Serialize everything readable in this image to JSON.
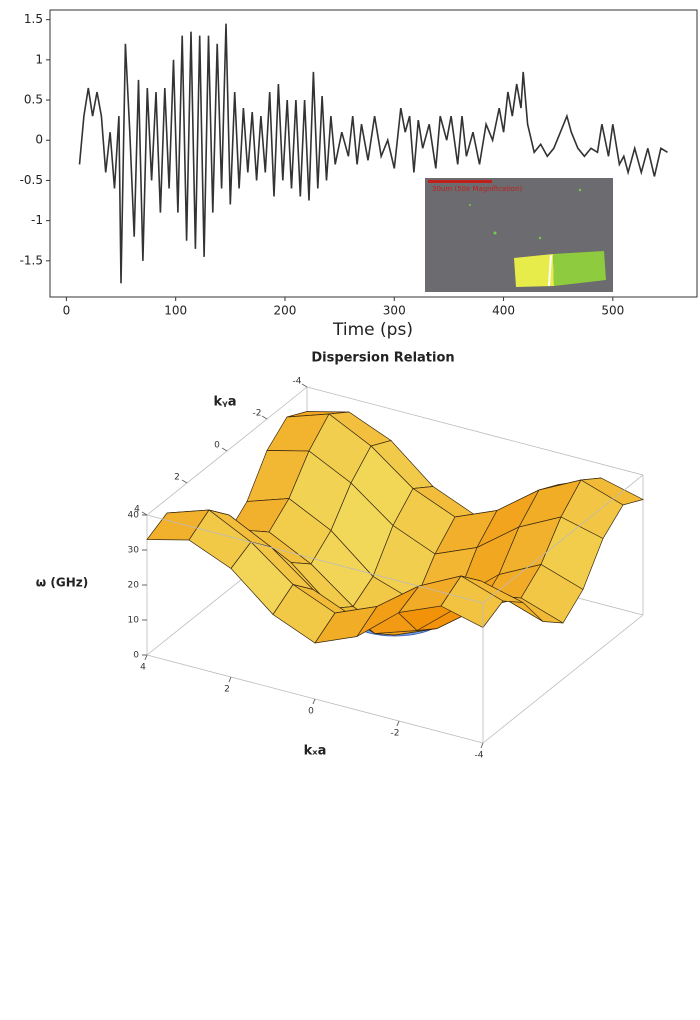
{
  "chart_data": [
    {
      "type": "line",
      "x_label": "Time (ps)",
      "inset_label": "30um (50x Magnification)",
      "xlim": [
        -15,
        577
      ],
      "ylim": [
        -1.95,
        1.62
      ],
      "xticks": [
        0,
        100,
        200,
        300,
        400,
        500
      ],
      "yticks": [
        -1.5,
        -1.0,
        -0.5,
        0.0,
        0.5,
        1.0,
        1.5
      ],
      "color": "#333333",
      "series": [
        {
          "x": [
            12,
            16,
            20,
            24,
            28,
            32,
            36,
            40,
            44,
            48,
            50,
            54,
            58,
            62,
            66,
            70,
            74,
            78,
            82,
            86,
            90,
            94,
            98,
            102,
            106,
            110,
            114,
            118,
            122,
            126,
            130,
            134,
            138,
            142,
            146,
            150,
            154,
            158,
            162,
            166,
            170,
            174,
            178,
            182,
            186,
            190,
            194,
            198,
            202,
            206,
            210,
            214,
            218,
            222,
            226,
            230,
            234,
            238,
            242,
            246,
            252,
            258,
            262,
            266,
            270,
            276,
            282,
            288,
            294,
            300,
            306,
            310,
            314,
            318,
            322,
            326,
            332,
            338,
            342,
            348,
            352,
            358,
            362,
            366,
            372,
            378,
            384,
            390,
            396,
            400,
            404,
            408,
            412,
            416,
            418,
            422,
            428,
            434,
            440,
            446,
            452,
            458,
            462,
            468,
            474,
            480,
            486,
            490,
            496,
            500,
            506,
            510,
            514,
            520,
            526,
            532,
            538,
            544,
            550
          ],
          "values": [
            -0.3,
            0.3,
            0.65,
            0.3,
            0.6,
            0.3,
            -0.4,
            0.1,
            -0.6,
            0.3,
            -1.78,
            1.2,
            0.1,
            -1.2,
            0.75,
            -1.5,
            0.65,
            -0.5,
            0.6,
            -0.9,
            0.65,
            -0.6,
            1.0,
            -0.9,
            1.3,
            -1.25,
            1.35,
            -1.35,
            1.3,
            -1.45,
            1.3,
            -0.9,
            1.2,
            -0.6,
            1.45,
            -0.8,
            0.6,
            -0.6,
            0.4,
            -0.4,
            0.35,
            -0.5,
            0.3,
            -0.4,
            0.6,
            -0.7,
            0.7,
            -0.5,
            0.5,
            -0.6,
            0.5,
            -0.7,
            0.5,
            -0.75,
            0.85,
            -0.6,
            0.55,
            -0.5,
            0.3,
            -0.3,
            0.1,
            -0.2,
            0.3,
            -0.3,
            0.2,
            -0.25,
            0.3,
            -0.2,
            0.0,
            -0.35,
            0.4,
            0.1,
            0.3,
            -0.4,
            0.25,
            -0.1,
            0.2,
            -0.35,
            0.3,
            0.0,
            0.3,
            -0.3,
            0.3,
            -0.2,
            0.1,
            -0.3,
            0.2,
            0.0,
            0.4,
            0.1,
            0.6,
            0.3,
            0.7,
            0.4,
            0.85,
            0.2,
            -0.15,
            -0.05,
            -0.2,
            -0.1,
            0.1,
            0.3,
            0.1,
            -0.1,
            -0.2,
            -0.1,
            -0.15,
            0.2,
            -0.2,
            0.2,
            -0.3,
            -0.2,
            -0.4,
            -0.1,
            -0.4,
            -0.1,
            -0.45,
            -0.1,
            -0.15
          ]
        }
      ]
    },
    {
      "type": "surface",
      "title": "Dispersion Relation",
      "x_label": "kₓa",
      "y_label": "kᵧa",
      "z_label": "ω (GHz)",
      "xlim": [
        -4,
        4
      ],
      "ylim": [
        -4,
        4
      ],
      "zlim": [
        0,
        40
      ],
      "xticks": [
        4,
        2,
        0,
        -2,
        -4
      ],
      "yticks": [
        -4,
        -2,
        0,
        2,
        4
      ],
      "zticks": [
        0,
        10,
        20,
        30,
        40
      ],
      "color": "#f2b531",
      "inner_color": "#6f9be8",
      "x": [
        -4,
        -3,
        -2,
        -1,
        0,
        1,
        2,
        3,
        4
      ],
      "y": [
        -4,
        -3,
        -2,
        -1,
        0,
        1,
        2,
        3,
        4
      ],
      "z": [
        [
          33,
          36,
          31,
          21,
          16,
          21,
          31,
          36,
          33
        ],
        [
          36,
          40,
          34,
          25,
          20,
          25,
          34,
          40,
          36
        ],
        [
          31,
          34,
          28,
          19,
          14,
          19,
          28,
          34,
          31
        ],
        [
          21,
          25,
          19,
          9,
          5,
          9,
          19,
          25,
          21
        ],
        [
          16,
          20,
          14,
          5,
          0,
          5,
          14,
          20,
          16
        ],
        [
          21,
          25,
          19,
          9,
          5,
          9,
          19,
          25,
          21
        ],
        [
          31,
          34,
          28,
          19,
          14,
          19,
          28,
          34,
          31
        ],
        [
          36,
          40,
          34,
          25,
          20,
          25,
          34,
          40,
          36
        ],
        [
          33,
          36,
          31,
          21,
          16,
          21,
          31,
          36,
          33
        ]
      ]
    }
  ]
}
